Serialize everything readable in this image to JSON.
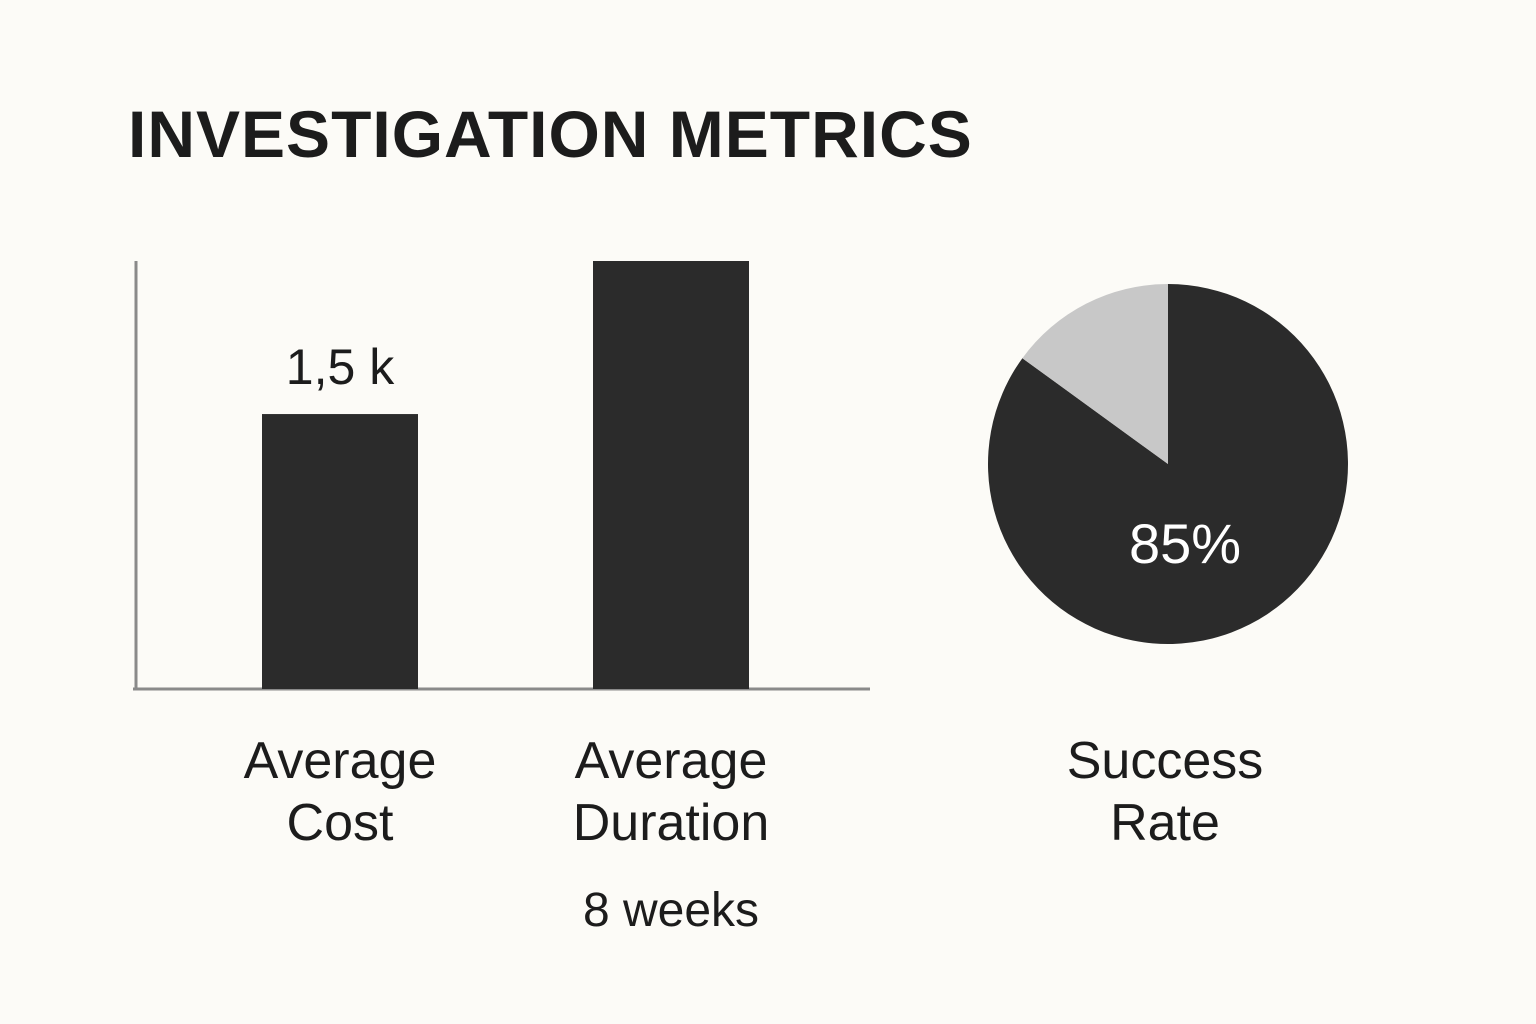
{
  "title": "INVESTIGATION METRICS",
  "chart_data": [
    {
      "type": "bar",
      "categories": [
        "Average Cost",
        "Average Duration"
      ],
      "series": [
        {
          "color": "#2b2b2b",
          "values": [
            1500,
            null
          ],
          "value_labels": [
            "1,5 k",
            null
          ]
        },
        {
          "color": "#2b2b2b",
          "values": [
            null,
            8
          ],
          "value_labels": [
            null,
            "8 weeks"
          ],
          "axis": "y2"
        }
      ],
      "ylim": [
        0,
        2335
      ],
      "y2lim": [
        0,
        8
      ]
    },
    {
      "type": "pie",
      "title": "Success Rate",
      "values": [
        85,
        15
      ],
      "value_labels": [
        "85%",
        null
      ],
      "colors": [
        "#2b2b2b",
        "#c8c8c8"
      ]
    }
  ]
}
